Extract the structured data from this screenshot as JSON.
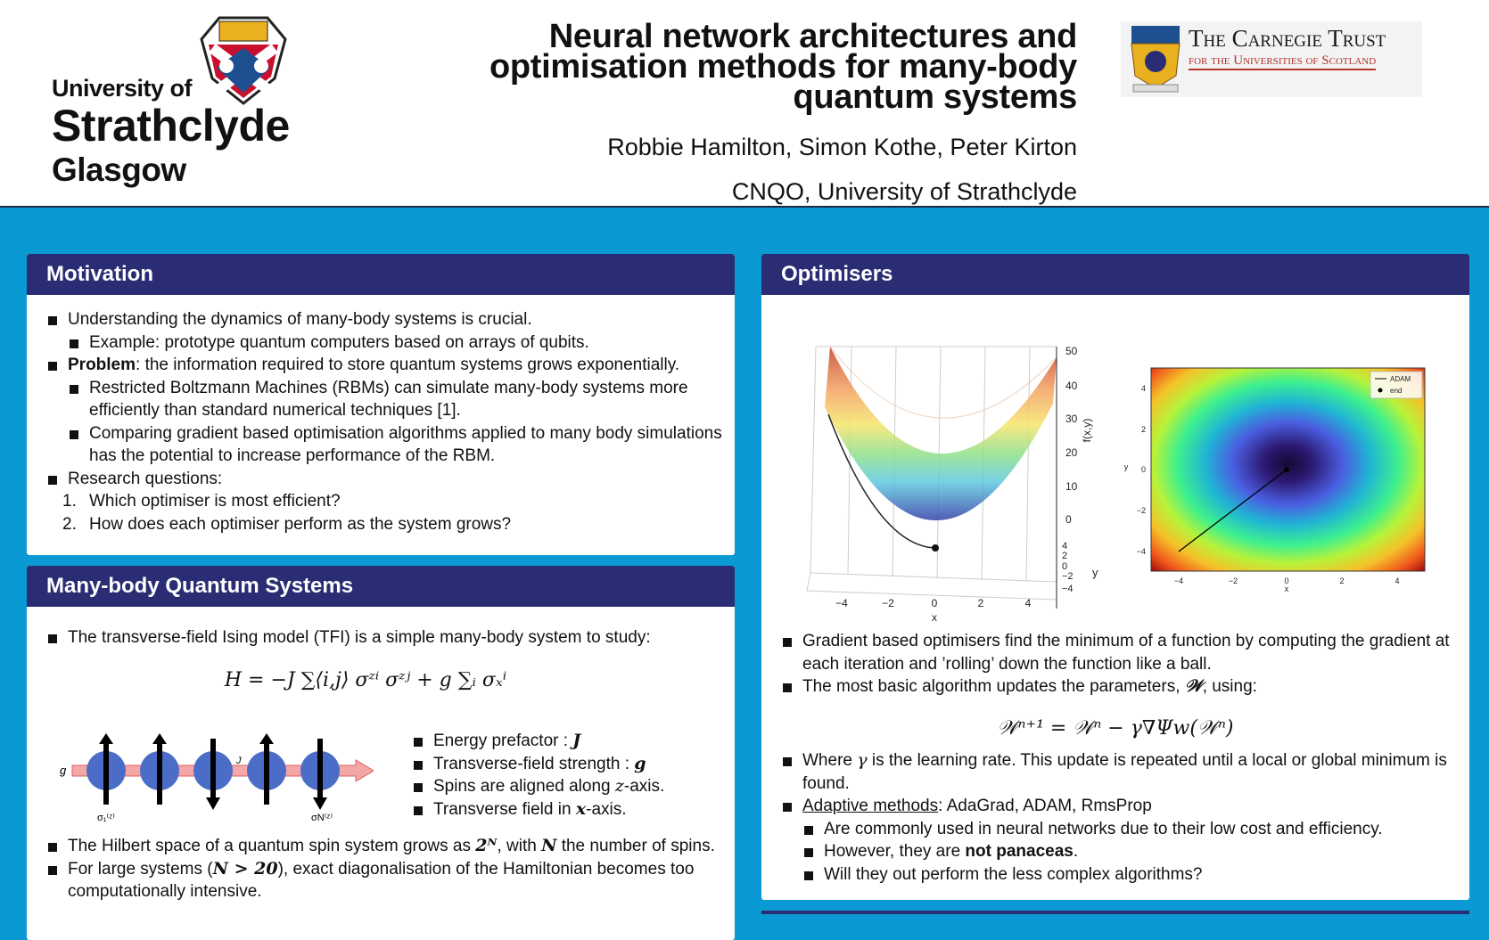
{
  "header": {
    "university": [
      "University of",
      "Strathclyde",
      "Glasgow"
    ],
    "title": [
      "Neural network architectures and",
      "optimisation methods for many-body",
      "quantum systems"
    ],
    "authors": "Robbie Hamilton, Simon Kothe, Peter Kirton",
    "affiliation": "CNQO, University of Strathclyde",
    "sponsor": {
      "name": "The Carnegie Trust",
      "subtitle": "for the Universities of Scotland"
    }
  },
  "motivation": {
    "title": "Motivation",
    "items": [
      {
        "level": 1,
        "parts": [
          {
            "text": "Understanding the dynamics of many-body systems is crucial."
          }
        ]
      },
      {
        "level": 2,
        "parts": [
          {
            "text": "Example: prototype quantum computers based on arrays of qubits."
          }
        ]
      },
      {
        "level": 1,
        "parts": [
          {
            "text": "Problem",
            "style": "b"
          },
          {
            "text": ": the information required to store quantum systems grows exponentially."
          }
        ]
      },
      {
        "level": 2,
        "parts": [
          {
            "text": "Restricted Boltzmann Machines (RBMs) can simulate many-body systems more efficiently than standard numerical techniques [1]."
          }
        ]
      },
      {
        "level": 2,
        "parts": [
          {
            "text": "Comparing gradient based optimisation algorithms applied to many body simulations has the potential to increase performance of the RBM."
          }
        ]
      },
      {
        "level": 1,
        "parts": [
          {
            "text": "Research questions:"
          }
        ]
      },
      {
        "level": 1,
        "number": "1.",
        "parts": [
          {
            "text": "Which optimiser is most efficient?"
          }
        ]
      },
      {
        "level": 1,
        "number": "2.",
        "parts": [
          {
            "text": "How does each optimiser perform as the system grows?"
          }
        ]
      }
    ]
  },
  "many_body": {
    "title": "Many-body Quantum Systems",
    "intro": [
      {
        "level": 1,
        "parts": [
          {
            "text": "The transverse-field Ising model (TFI) is a simple many-body system to study:"
          }
        ]
      }
    ],
    "formula": "H = −J ∑⟨i,j⟩ σᶻⁱ σᶻʲ + g ∑ᵢ σₓⁱ",
    "figure": {
      "field": "g",
      "coupling": "J",
      "first_spin": "σ₁⁽ᶻ⁾",
      "last_spin": "σN⁽ᶻ⁾"
    },
    "side_items": [
      {
        "level": 1,
        "parts": [
          {
            "text": "Energy prefactor : "
          },
          {
            "text": "J",
            "style": "m"
          }
        ]
      },
      {
        "level": 1,
        "parts": [
          {
            "text": "Transverse-field strength : "
          },
          {
            "text": "g",
            "style": "m"
          }
        ]
      },
      {
        "level": 1,
        "parts": [
          {
            "text": "Spins are aligned along "
          },
          {
            "text": "z",
            "style": "mi"
          },
          {
            "text": "-axis."
          }
        ]
      },
      {
        "level": 1,
        "parts": [
          {
            "text": "Transverse field in "
          },
          {
            "text": "x",
            "style": "m"
          },
          {
            "text": "-axis."
          }
        ]
      }
    ],
    "items": [
      {
        "level": 1,
        "parts": [
          {
            "text": "The Hilbert space of a quantum spin system grows as "
          },
          {
            "text": "2ᴺ",
            "style": "m"
          },
          {
            "text": ", with "
          },
          {
            "text": "N",
            "style": "m"
          },
          {
            "text": " the number of spins."
          }
        ]
      },
      {
        "level": 1,
        "parts": [
          {
            "text": "For large systems ("
          },
          {
            "text": "N > 20",
            "style": "m"
          },
          {
            "text": "), exact diagonalisation of the Hamiltonian becomes too computationally intensive."
          }
        ]
      }
    ]
  },
  "optimisers": {
    "title": "Optimisers",
    "surface_plot": {
      "zticks": [
        "50",
        "40",
        "30",
        "20",
        "10",
        "0"
      ],
      "zlabel": "f(x,y)",
      "xticks": [
        "−4",
        "−2",
        "0",
        "2",
        "4"
      ],
      "xlabel": "x",
      "yticks": [
        "4",
        "2",
        "0",
        "−2",
        "−4"
      ],
      "ylabel": "y"
    },
    "contour_plot": {
      "xticks": [
        "−4",
        "−2",
        "0",
        "2",
        "4"
      ],
      "xlabel": "x",
      "yticks": [
        "4",
        "2",
        "0",
        "−2",
        "−4"
      ],
      "ylabel": "y",
      "legend": [
        "ADAM",
        "end"
      ]
    },
    "items": [
      {
        "level": 1,
        "parts": [
          {
            "text": "Gradient based optimisers find the minimum of a function by computing the gradient at each iteration and ’rolling’ down the function like a ball."
          }
        ]
      },
      {
        "level": 1,
        "parts": [
          {
            "text": "The most basic algorithm updates the parameters, "
          },
          {
            "text": "𝒲",
            "style": "m"
          },
          {
            "text": ", using:"
          }
        ]
      }
    ],
    "formula": "𝒲ⁿ⁺¹ = 𝒲ⁿ − γ∇Ψw(𝒲ⁿ)",
    "items2": [
      {
        "level": 1,
        "parts": [
          {
            "text": "Where "
          },
          {
            "text": "γ",
            "style": "mi"
          },
          {
            "text": " is the learning rate. This update is repeated until a local or global minimum is found."
          }
        ]
      },
      {
        "level": 1,
        "parts": [
          {
            "text": "Adaptive methods",
            "style": "u"
          },
          {
            "text": ": AdaGrad, ADAM, RmsProp"
          }
        ]
      },
      {
        "level": 2,
        "parts": [
          {
            "text": "Are commonly used in neural networks due to their low cost and efficiency."
          }
        ]
      },
      {
        "level": 2,
        "parts": [
          {
            "text": "However, they are "
          },
          {
            "text": "not panaceas",
            "style": "b"
          },
          {
            "text": "."
          }
        ]
      },
      {
        "level": 2,
        "parts": [
          {
            "text": "Will they out perform the less complex algorithms?"
          }
        ]
      }
    ]
  }
}
